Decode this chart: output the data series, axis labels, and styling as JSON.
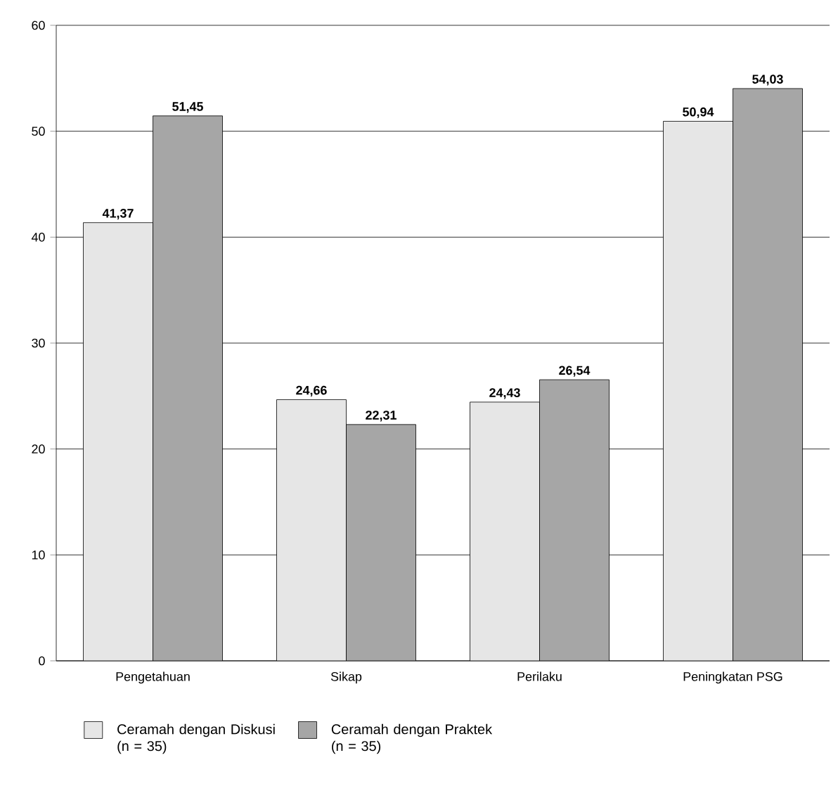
{
  "chart_data": {
    "type": "bar",
    "categories": [
      "Pengetahuan",
      "Sikap",
      "Perilaku",
      "Peningkatan PSG"
    ],
    "series": [
      {
        "name": "Ceramah dengan Diskusi (n = 35)",
        "color": "#e6e6e6",
        "values": [
          41.37,
          24.66,
          24.43,
          50.94
        ],
        "value_labels": [
          "41,37",
          "24,66",
          "24,43",
          "50,94"
        ]
      },
      {
        "name": "Ceramah dengan Praktek (n = 35)",
        "color": "#a6a6a6",
        "values": [
          51.45,
          22.31,
          26.54,
          54.03
        ],
        "value_labels": [
          "51,45",
          "22,31",
          "26,54",
          "54,03"
        ]
      }
    ],
    "ylim": [
      0,
      60
    ],
    "yticks": [
      0,
      10,
      20,
      30,
      40,
      50,
      60
    ],
    "grid": "y",
    "legend": "bottom"
  }
}
